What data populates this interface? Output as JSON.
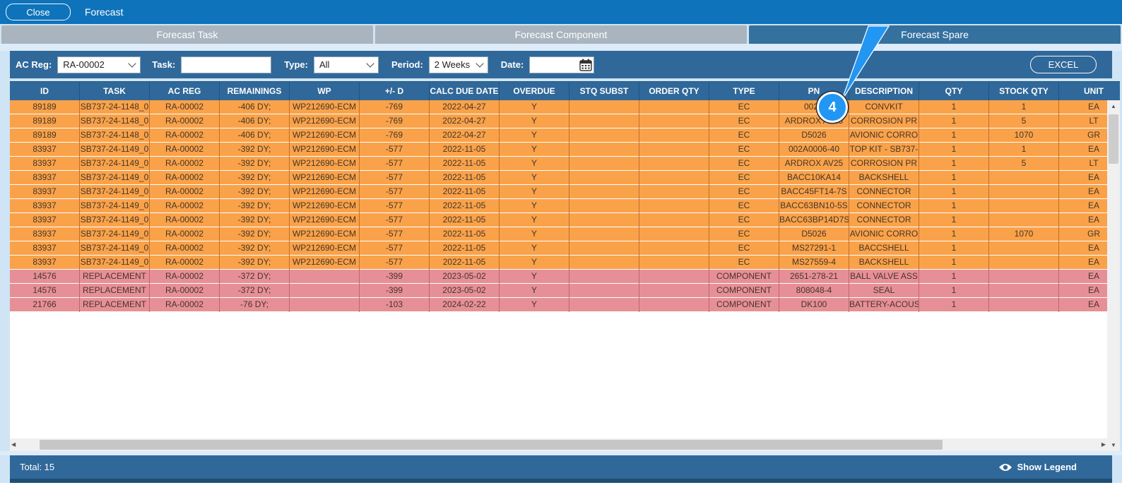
{
  "window": {
    "title": "Forecast",
    "close_label": "Close"
  },
  "tabs": [
    {
      "label": "Forecast Task",
      "active": false
    },
    {
      "label": "Forecast Component",
      "active": false
    },
    {
      "label": "Forecast Spare",
      "active": true
    }
  ],
  "filters": {
    "ac_reg_label": "AC Reg:",
    "ac_reg_value": "RA-00002",
    "task_label": "Task:",
    "task_value": "",
    "type_label": "Type:",
    "type_value": "All",
    "period_label": "Period:",
    "period_value": "2 Weeks",
    "date_label": "Date:",
    "date_value": "",
    "excel_label": "EXCEL"
  },
  "icons": {
    "date_picker": "calendar-icon",
    "legend": "eye-icon",
    "select_arrow": "chevron-down-icon"
  },
  "table": {
    "columns": [
      "ID",
      "TASK",
      "AC REG",
      "REMAININGS",
      "WP",
      "+/- D",
      "CALC DUE DATE",
      "OVERDUE",
      "STQ SUBST",
      "ORDER QTY",
      "TYPE",
      "PN",
      "DESCRIPTION",
      "QTY",
      "STOCK QTY",
      "UNIT"
    ],
    "rows": [
      {
        "variant": "orange",
        "cells": [
          "89189",
          "SB737-24-1148_0",
          "RA-00002",
          "-406 DY;",
          "WP212690-ECM",
          "-769",
          "2022-04-27",
          "Y",
          "",
          "",
          "EC",
          "002A",
          "CONVKIT",
          "1",
          "1",
          "EA"
        ]
      },
      {
        "variant": "orange",
        "cells": [
          "89189",
          "SB737-24-1148_0",
          "RA-00002",
          "-406 DY;",
          "WP212690-ECM",
          "-769",
          "2022-04-27",
          "Y",
          "",
          "",
          "EC",
          "ARDROX AV25",
          "CORROSION PR",
          "1",
          "5",
          "LT"
        ]
      },
      {
        "variant": "orange",
        "cells": [
          "89189",
          "SB737-24-1148_0",
          "RA-00002",
          "-406 DY;",
          "WP212690-ECM",
          "-769",
          "2022-04-27",
          "Y",
          "",
          "",
          "EC",
          "D5026",
          "AVIONIC CORRO",
          "1",
          "1070",
          "GR"
        ]
      },
      {
        "variant": "orange",
        "cells": [
          "83937",
          "SB737-24-1149_0",
          "RA-00002",
          "-392 DY;",
          "WP212690-ECM",
          "-577",
          "2022-11-05",
          "Y",
          "",
          "",
          "EC",
          "002A0006-40",
          "TOP KIT - SB737-",
          "1",
          "1",
          "EA"
        ]
      },
      {
        "variant": "orange",
        "cells": [
          "83937",
          "SB737-24-1149_0",
          "RA-00002",
          "-392 DY;",
          "WP212690-ECM",
          "-577",
          "2022-11-05",
          "Y",
          "",
          "",
          "EC",
          "ARDROX AV25",
          "CORROSION PR",
          "1",
          "5",
          "LT"
        ]
      },
      {
        "variant": "orange",
        "cells": [
          "83937",
          "SB737-24-1149_0",
          "RA-00002",
          "-392 DY;",
          "WP212690-ECM",
          "-577",
          "2022-11-05",
          "Y",
          "",
          "",
          "EC",
          "BACC10KA14",
          "BACKSHELL",
          "1",
          "",
          "EA"
        ]
      },
      {
        "variant": "orange",
        "cells": [
          "83937",
          "SB737-24-1149_0",
          "RA-00002",
          "-392 DY;",
          "WP212690-ECM",
          "-577",
          "2022-11-05",
          "Y",
          "",
          "",
          "EC",
          "BACC45FT14-7S",
          "CONNECTOR",
          "1",
          "",
          "EA"
        ]
      },
      {
        "variant": "orange",
        "cells": [
          "83937",
          "SB737-24-1149_0",
          "RA-00002",
          "-392 DY;",
          "WP212690-ECM",
          "-577",
          "2022-11-05",
          "Y",
          "",
          "",
          "EC",
          "BACC63BN10-5S",
          "CONNECTOR",
          "1",
          "",
          "EA"
        ]
      },
      {
        "variant": "orange",
        "cells": [
          "83937",
          "SB737-24-1149_0",
          "RA-00002",
          "-392 DY;",
          "WP212690-ECM",
          "-577",
          "2022-11-05",
          "Y",
          "",
          "",
          "EC",
          "BACC63BP14D7S",
          "CONNECTOR",
          "1",
          "",
          "EA"
        ]
      },
      {
        "variant": "orange",
        "cells": [
          "83937",
          "SB737-24-1149_0",
          "RA-00002",
          "-392 DY;",
          "WP212690-ECM",
          "-577",
          "2022-11-05",
          "Y",
          "",
          "",
          "EC",
          "D5026",
          "AVIONIC CORRO",
          "1",
          "1070",
          "GR"
        ]
      },
      {
        "variant": "orange",
        "cells": [
          "83937",
          "SB737-24-1149_0",
          "RA-00002",
          "-392 DY;",
          "WP212690-ECM",
          "-577",
          "2022-11-05",
          "Y",
          "",
          "",
          "EC",
          "MS27291-1",
          "BACCSHELL",
          "1",
          "",
          "EA"
        ]
      },
      {
        "variant": "orange",
        "cells": [
          "83937",
          "SB737-24-1149_0",
          "RA-00002",
          "-392 DY;",
          "WP212690-ECM",
          "-577",
          "2022-11-05",
          "Y",
          "",
          "",
          "EC",
          "MS27559-4",
          "BACKSHELL",
          "1",
          "",
          "EA"
        ]
      },
      {
        "variant": "pink",
        "cells": [
          "14576",
          "REPLACEMENT",
          "RA-00002",
          "-372 DY;",
          "",
          "-399",
          "2023-05-02",
          "Y",
          "",
          "",
          "COMPONENT",
          "2651-278-21",
          "BALL VALVE ASS",
          "1",
          "",
          "EA"
        ]
      },
      {
        "variant": "pink",
        "cells": [
          "14576",
          "REPLACEMENT",
          "RA-00002",
          "-372 DY;",
          "",
          "-399",
          "2023-05-02",
          "Y",
          "",
          "",
          "COMPONENT",
          "808048-4",
          "SEAL",
          "1",
          "",
          "EA"
        ]
      },
      {
        "variant": "pink",
        "cells": [
          "21766",
          "REPLACEMENT",
          "RA-00002",
          "-76 DY;",
          "",
          "-103",
          "2024-02-22",
          "Y",
          "",
          "",
          "COMPONENT",
          "DK100",
          "BATTERY-ACOUS",
          "1",
          "",
          "EA"
        ]
      }
    ]
  },
  "annotation": {
    "step_number": "4"
  },
  "footer": {
    "total_label": "Total: 15",
    "show_legend_label": "Show Legend"
  },
  "colors": {
    "title_bar": "#0e73ba",
    "bar_blue": "#30689a",
    "tab_inactive": "#a9b4be",
    "tab_active": "#35719f",
    "row_orange": "#f9a24a",
    "row_pink": "#e78f97",
    "annotation_blue": "#2196f3",
    "background": "#cfe4f4"
  }
}
